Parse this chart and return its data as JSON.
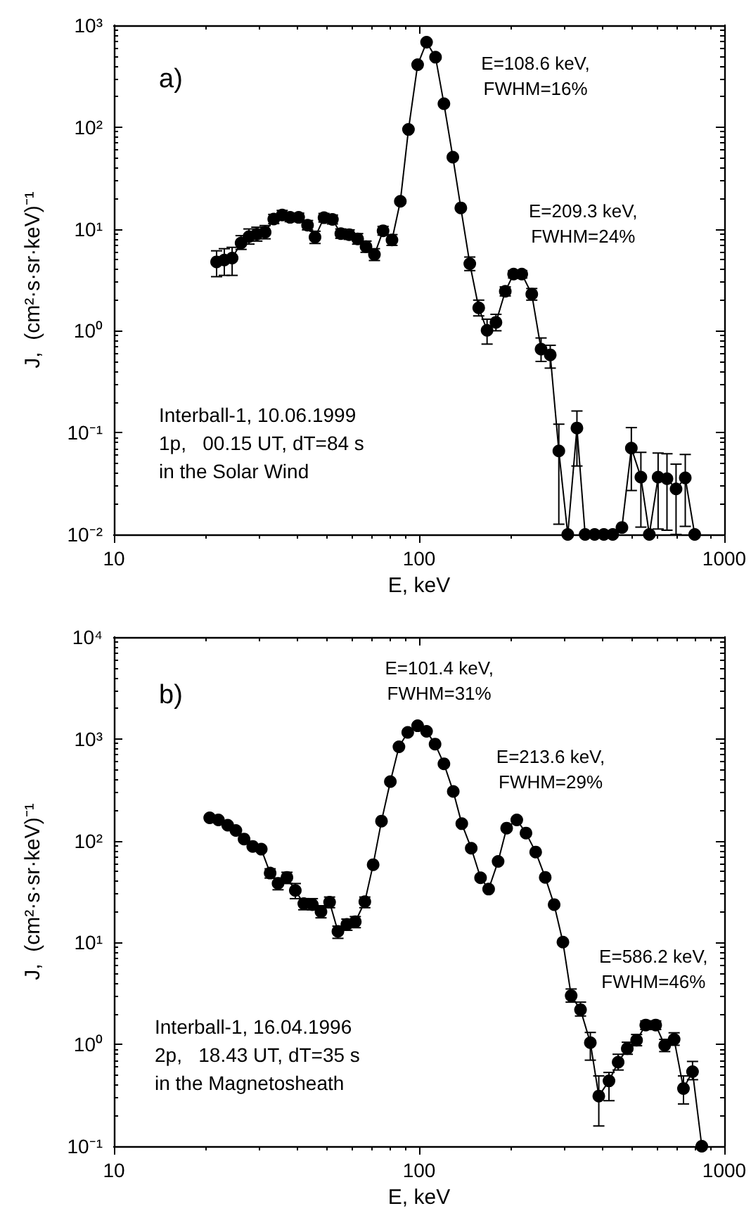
{
  "chart_data": [
    {
      "type": "line",
      "title": "a)",
      "xlabel": "E, keV",
      "ylabel": "J,  (cm²·s·sr·keV)⁻¹",
      "log": "xy",
      "marker": "circle",
      "grid": false,
      "xlim": [
        10,
        1000
      ],
      "ylim": [
        0.01,
        1000
      ],
      "xticks": [
        10,
        100,
        1000
      ],
      "yticks": [
        {
          "value": 0.01,
          "label": "10⁻²"
        },
        {
          "value": 0.1,
          "label": "10⁻¹"
        },
        {
          "value": 1,
          "label": "10⁰"
        },
        {
          "value": 10,
          "label": "10¹"
        },
        {
          "value": 100,
          "label": "10²"
        },
        {
          "value": 1000,
          "label": "10³"
        }
      ],
      "annotations": [
        {
          "text": "E=108.6 keV,\nFWHM=16%",
          "x": 108.6,
          "y": 682
        },
        {
          "text": "E=209.3 keV,\nFWHM=24%",
          "x": 209.3,
          "y": 3.61
        },
        "Interball-1, 10.06.1999\n1p,   00.15 UT, dT=84 s\nin the Solar Wind"
      ],
      "series": [
        {
          "color": "#000000",
          "x": [
            21.7,
            23.0,
            24.4,
            26.1,
            27.7,
            29.4,
            31.3,
            33.4,
            35.6,
            37.8,
            40.3,
            43.1,
            45.6,
            48.8,
            52.0,
            55.4,
            59.0,
            62.9,
            67.0,
            71.4,
            76.2,
            81.5,
            86.8,
            92.3,
            98.9,
            105.8,
            113.2,
            120.6,
            129.0,
            137.0,
            146.6,
            156.8,
            167.0,
            178.6,
            191.6,
            204,
            217,
            234,
            251,
            269,
            287,
            307,
            329,
            350,
            376,
            403,
            431,
            462,
            496,
            533,
            568,
            607,
            649,
            695,
            745,
            800
          ],
          "values": [
            4.75,
            4.96,
            5.18,
            7.28,
            8.4,
            8.9,
            9.3,
            12.5,
            13.7,
            13.0,
            13.0,
            10.9,
            8.3,
            12.9,
            12.4,
            9.0,
            8.8,
            8.0,
            6.7,
            5.6,
            9.6,
            7.8,
            18.7,
            94.9,
            410,
            682,
            486,
            170,
            50.7,
            16.1,
            4.56,
            1.68,
            1.01,
            1.21,
            2.44,
            3.61,
            3.61,
            2.29,
            0.66,
            0.58,
            0.066,
            0.01,
            0.111,
            0.01,
            0.01,
            0.01,
            0.01,
            0.0117,
            0.0705,
            0.0365,
            0.01,
            0.0365,
            0.0353,
            0.028,
            0.0359,
            0.01
          ],
          "errors": [
            [
              3.4,
              6.1
            ],
            [
              3.5,
              6.4
            ],
            [
              3.5,
              6.6
            ],
            [
              6.3,
              8.6
            ],
            [
              7.1,
              10
            ],
            [
              7.6,
              10.4
            ],
            [
              8,
              10.8
            ],
            [
              11.3,
              13.9
            ],
            [
              12.3,
              15.2
            ],
            [
              11.8,
              14.3
            ],
            [
              11.8,
              14.3
            ],
            [
              9.8,
              12.1
            ],
            [
              7.2,
              9.5
            ],
            [
              11.7,
              14.2
            ],
            [
              11.2,
              13.7
            ],
            [
              8.1,
              10
            ],
            [
              7.9,
              9.8
            ],
            [
              7.1,
              9
            ],
            [
              5.9,
              7.6
            ],
            [
              4.9,
              6.4
            ],
            [
              8.7,
              10.6
            ],
            [
              6.9,
              8.8
            ],
            null,
            null,
            null,
            null,
            null,
            null,
            null,
            null,
            [
              3.9,
              5.3
            ],
            [
              1.4,
              2.0
            ],
            [
              0.74,
              1.3
            ],
            [
              1.0,
              1.45
            ],
            [
              2.2,
              2.7
            ],
            [
              3.3,
              3.9
            ],
            [
              3.3,
              3.9
            ],
            [
              2.0,
              2.6
            ],
            [
              0.5,
              0.85
            ],
            [
              0.43,
              0.72
            ],
            [
              0.0126,
              0.121
            ],
            null,
            [
              0.047,
              0.163
            ],
            null,
            null,
            null,
            null,
            null,
            [
              0.027,
              0.112
            ],
            [
              0.0118,
              0.064
            ],
            null,
            [
              0.0113,
              0.063
            ],
            [
              0.011,
              0.062
            ],
            [
              0.01,
              0.049
            ],
            [
              0.012,
              0.061
            ],
            null
          ]
        }
      ]
    },
    {
      "type": "line",
      "title": "b)",
      "xlabel": "E, keV",
      "ylabel": "J,  (cm²·s·sr·keV)⁻¹",
      "log": "xy",
      "marker": "circle",
      "grid": false,
      "xlim": [
        10,
        1000
      ],
      "ylim": [
        0.1,
        10000
      ],
      "xticks": [
        10,
        100,
        1000
      ],
      "yticks": [
        {
          "value": 0.1,
          "label": "10⁻¹"
        },
        {
          "value": 1,
          "label": "10⁰"
        },
        {
          "value": 10,
          "label": "10¹"
        },
        {
          "value": 100,
          "label": "10²"
        },
        {
          "value": 1000,
          "label": "10³"
        },
        {
          "value": 10000,
          "label": "10⁴"
        }
      ],
      "annotations": [
        {
          "text": "E=101.4 keV,\nFWHM=31%",
          "x": 101.4,
          "y": 1346
        },
        {
          "text": "E=213.6 keV,\nFWHM=29%",
          "x": 213.6,
          "y": 160
        },
        {
          "text": "E=586.2 keV,\nFWHM=46%",
          "x": 586.2,
          "y": 1.55
        },
        "Interball-1, 16.04.1996\n2p,   18.43 UT, dT=35 s\nin the Magnetosheath"
      ],
      "series": [
        {
          "color": "#000000",
          "x": [
            20.6,
            22.0,
            23.6,
            25.1,
            26.7,
            28.5,
            30.4,
            32.5,
            34.5,
            36.9,
            39.3,
            41.9,
            44.7,
            47.7,
            50.9,
            54.2,
            58.0,
            61.8,
            66.4,
            70.7,
            75.3,
            80.5,
            85.9,
            91.8,
            98.9,
            105.8,
            112.8,
            120.6,
            129.4,
            138,
            148.2,
            159,
            169,
            181.5,
            193.6,
            209,
            224,
            241,
            259,
            277,
            296,
            315,
            338,
            364,
            388,
            419,
            449,
            481,
            516,
            553,
            596,
            638,
            685,
            735,
            787,
            844
          ],
          "values": [
            168,
            160,
            142,
            126,
            104,
            88,
            82.6,
            48.1,
            38.1,
            43.7,
            32.5,
            24.1,
            23.6,
            20.1,
            24.9,
            12.9,
            15.1,
            16.0,
            25.2,
            58.2,
            156,
            381,
            836,
            1160,
            1346,
            1186,
            890,
            570,
            305,
            147,
            84.4,
            43.3,
            33.5,
            62.7,
            133,
            160,
            119,
            77.5,
            43.7,
            23.6,
            10.1,
            3.01,
            2.19,
            1.04,
            0.311,
            0.438,
            0.668,
            0.91,
            1.1,
            1.55,
            1.55,
            0.98,
            1.12,
            0.369,
            0.54,
            0.1
          ],
          "errors": [
            null,
            null,
            null,
            null,
            null,
            null,
            null,
            [
              43,
              53
            ],
            [
              33,
              43
            ],
            [
              38,
              49
            ],
            [
              27,
              38
            ],
            [
              21,
              27
            ],
            [
              21,
              27
            ],
            [
              17.5,
              23
            ],
            [
              22,
              28
            ],
            [
              11,
              14.5
            ],
            [
              13.2,
              17
            ],
            [
              14,
              18
            ],
            [
              22,
              28
            ],
            null,
            null,
            null,
            null,
            null,
            null,
            null,
            null,
            null,
            null,
            null,
            null,
            null,
            null,
            null,
            null,
            null,
            null,
            null,
            null,
            null,
            null,
            [
              2.6,
              3.5
            ],
            [
              1.9,
              2.6
            ],
            [
              0.7,
              1.31
            ],
            [
              0.158,
              0.49
            ],
            [
              0.28,
              0.53
            ],
            [
              0.56,
              0.8
            ],
            [
              0.8,
              1.05
            ],
            [
              0.97,
              1.25
            ],
            [
              1.4,
              1.7
            ],
            [
              1.4,
              1.7
            ],
            [
              0.85,
              1.12
            ],
            [
              0.98,
              1.3
            ],
            [
              0.26,
              0.49
            ],
            [
              0.45,
              0.68
            ],
            null
          ]
        }
      ]
    }
  ]
}
